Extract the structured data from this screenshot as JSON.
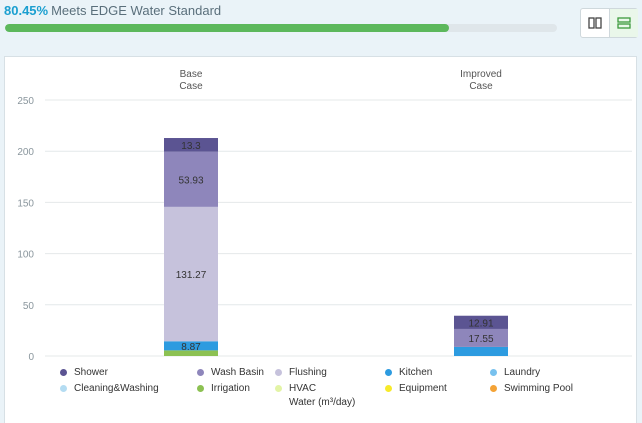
{
  "header": {
    "percent": "80.45%",
    "status_text": "Meets EDGE Water Standard",
    "progress": 80.45
  },
  "toggle": {
    "columns_icon": "columns-icon",
    "rows_icon": "rows-icon",
    "active": "rows"
  },
  "chart_data": {
    "type": "bar",
    "stacked": true,
    "categories": [
      "Base\nCase",
      "Improved\nCase"
    ],
    "ylim": [
      0,
      250
    ],
    "yticks": [
      0,
      50,
      100,
      150,
      200,
      250
    ],
    "xlabel": "Water (m³/day)",
    "ylabel": "",
    "grid": true,
    "series": [
      {
        "name": "Shower",
        "color": "#5b5492",
        "values": [
          13.3,
          12.91
        ],
        "labels": [
          "13.3",
          "12.91"
        ]
      },
      {
        "name": "Wash Basin",
        "color": "#8e86bb",
        "values": [
          53.93,
          17.55
        ],
        "labels": [
          "53.93",
          "17.55"
        ]
      },
      {
        "name": "Flushing",
        "color": "#c6c2dc",
        "values": [
          131.27,
          0
        ],
        "labels": [
          "131.27",
          ""
        ]
      },
      {
        "name": "Kitchen",
        "color": "#2d9be0",
        "values": [
          8.87,
          8.87
        ],
        "labels": [
          "8.87",
          ""
        ]
      },
      {
        "name": "Laundry",
        "color": "#78c1ee",
        "values": [
          0,
          0
        ],
        "labels": [
          "",
          ""
        ]
      },
      {
        "name": "Cleaning&Washing",
        "color": "#b4dcf2",
        "values": [
          0,
          0
        ],
        "labels": [
          "",
          ""
        ]
      },
      {
        "name": "Irrigation",
        "color": "#8cc152",
        "values": [
          5.5,
          0
        ],
        "labels": [
          "",
          ""
        ]
      },
      {
        "name": "HVAC",
        "color": "#e3f4a6",
        "values": [
          0,
          0
        ],
        "labels": [
          "",
          ""
        ]
      },
      {
        "name": "Equipment",
        "color": "#f7ea2a",
        "values": [
          0,
          0
        ],
        "labels": [
          "",
          ""
        ]
      },
      {
        "name": "Swimming Pool",
        "color": "#f4a336",
        "values": [
          0,
          0
        ],
        "labels": [
          "",
          ""
        ]
      }
    ],
    "legend_position": "bottom"
  }
}
